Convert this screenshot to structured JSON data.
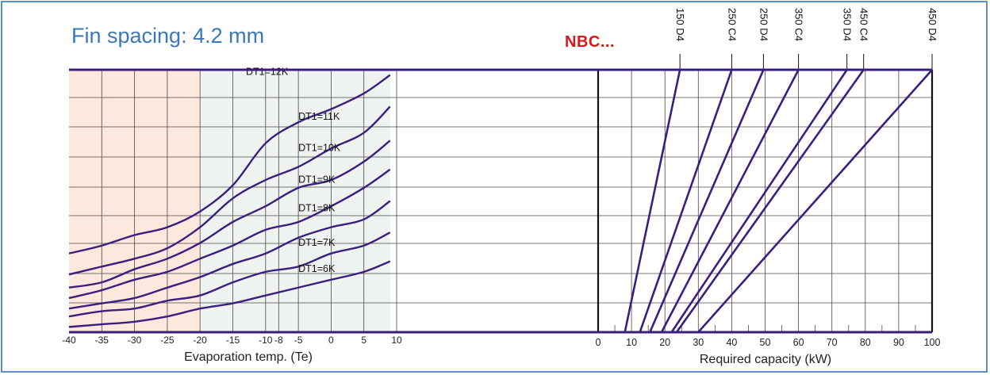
{
  "title": "Fin spacing: 4.2 mm",
  "brand": "NBC...",
  "colors": {
    "line": "#3b1e7e",
    "frame": "#5b8fc7",
    "title": "#3a78b8",
    "brand": "#d81818",
    "warm_zone": "#fce8dc",
    "cool_zone": "#eef3ef"
  },
  "chart_data": [
    {
      "type": "line",
      "xlabel": "Evaporation temp. (Te)",
      "ylabel": "",
      "xlim": [
        -40,
        10
      ],
      "xticks": [
        -40,
        -35,
        -30,
        -25,
        -20,
        -15,
        -10,
        -8,
        -5,
        0,
        5,
        10
      ],
      "xtick_labels": [
        "-40",
        "-35",
        "-30",
        "-25",
        "-20",
        "-15",
        "-10",
        "-8",
        "-5",
        "0",
        "5",
        "10"
      ],
      "zones": [
        {
          "from": -40,
          "to": -20,
          "fill": "#fce8dc"
        },
        {
          "from": -20,
          "to": 9,
          "fill": "#eef3ef"
        }
      ],
      "grid": true,
      "series": [
        {
          "name": "DT1=12K",
          "x": [
            -40,
            -35,
            -30,
            -25,
            -20,
            -15,
            -10,
            -5,
            0,
            5,
            9
          ],
          "y": [
            0.3,
            0.33,
            0.37,
            0.4,
            0.46,
            0.56,
            0.72,
            0.8,
            0.85,
            0.91,
            0.98
          ]
        },
        {
          "name": "DT1=11K",
          "x": [
            -40,
            -35,
            -30,
            -25,
            -20,
            -15,
            -10,
            -5,
            0,
            5,
            9
          ],
          "y": [
            0.22,
            0.25,
            0.28,
            0.32,
            0.4,
            0.51,
            0.58,
            0.63,
            0.7,
            0.76,
            0.86
          ]
        },
        {
          "name": "DT1=10K",
          "x": [
            -40,
            -35,
            -30,
            -25,
            -20,
            -15,
            -10,
            -5,
            0,
            5,
            9
          ],
          "y": [
            0.17,
            0.19,
            0.24,
            0.28,
            0.34,
            0.42,
            0.48,
            0.55,
            0.58,
            0.65,
            0.73
          ]
        },
        {
          "name": "DT1=9K",
          "x": [
            -40,
            -35,
            -30,
            -25,
            -20,
            -15,
            -10,
            -5,
            0,
            5,
            9
          ],
          "y": [
            0.13,
            0.16,
            0.2,
            0.23,
            0.28,
            0.33,
            0.39,
            0.42,
            0.48,
            0.55,
            0.62
          ]
        },
        {
          "name": "DT1=8K",
          "x": [
            -40,
            -35,
            -30,
            -25,
            -20,
            -15,
            -10,
            -5,
            0,
            5,
            9
          ],
          "y": [
            0.09,
            0.11,
            0.13,
            0.17,
            0.21,
            0.26,
            0.3,
            0.36,
            0.4,
            0.43,
            0.5
          ]
        },
        {
          "name": "DT1=7K",
          "x": [
            -40,
            -35,
            -30,
            -25,
            -20,
            -15,
            -10,
            -5,
            0,
            5,
            9
          ],
          "y": [
            0.06,
            0.08,
            0.09,
            0.12,
            0.14,
            0.19,
            0.23,
            0.25,
            0.3,
            0.33,
            0.38
          ]
        },
        {
          "name": "DT1=6K",
          "x": [
            -40,
            -35,
            -30,
            -25,
            -20,
            -15,
            -10,
            -5,
            0,
            5,
            9
          ],
          "y": [
            0.02,
            0.03,
            0.04,
            0.06,
            0.09,
            0.11,
            0.14,
            0.17,
            0.2,
            0.23,
            0.27
          ]
        }
      ]
    },
    {
      "type": "line",
      "xlabel": "Required capacity (kW)",
      "ylabel": "",
      "xlim": [
        0,
        100
      ],
      "xticks": [
        0,
        10,
        20,
        30,
        40,
        50,
        60,
        70,
        80,
        90,
        100
      ],
      "xtick_labels": [
        "0",
        "10",
        "20",
        "30",
        "40",
        "50",
        "60",
        "70",
        "80",
        "90",
        "100"
      ],
      "grid": true,
      "series": [
        {
          "name": "150 D4",
          "x": [
            8,
            24.5
          ],
          "y": [
            0,
            1
          ]
        },
        {
          "name": "250 C4",
          "x": [
            12.5,
            40
          ],
          "y": [
            0,
            1
          ]
        },
        {
          "name": "250 D4",
          "x": [
            15.5,
            49.5
          ],
          "y": [
            0,
            1
          ]
        },
        {
          "name": "350 C4",
          "x": [
            19,
            60
          ],
          "y": [
            0,
            1
          ]
        },
        {
          "name": "350 D4",
          "x": [
            22,
            74.5
          ],
          "y": [
            0,
            1
          ]
        },
        {
          "name": "450 C4",
          "x": [
            23.5,
            79.5
          ],
          "y": [
            0,
            1
          ]
        },
        {
          "name": "450 D4",
          "x": [
            30,
            100
          ],
          "y": [
            0,
            1
          ]
        }
      ]
    }
  ]
}
